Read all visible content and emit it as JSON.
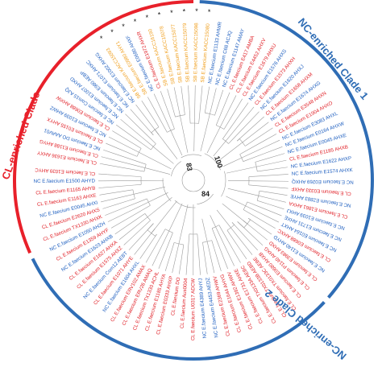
{
  "clades": {
    "cl_enriched": {
      "label": "CL-enriched Clade",
      "color": "#e8202a"
    },
    "nc_clade_1": {
      "label": "NC-enriched Clade 1",
      "color": "#2f6db5"
    },
    "nc_clade_2": {
      "label": "NC-enriched Clade 2",
      "color": "#2f6db5"
    }
  },
  "bootstrap": {
    "node_a": "83",
    "node_b": "100",
    "node_c": "84"
  },
  "star_symbol": "*",
  "group_colors": {
    "CL": "#e01f26",
    "NC": "#2060c0",
    "SB": "#f0a020"
  },
  "tips": [
    {
      "label": "CL E.faecium E1636 AHXY",
      "group": "CL"
    },
    {
      "label": "CL E.faecium E1188 AHYG",
      "group": "CL"
    },
    {
      "label": "NC E.faecium DO AAAV01",
      "group": "NC"
    },
    {
      "label": "CL E.faecium E0155 AHYX",
      "group": "CL"
    },
    {
      "label": "NC E.faecium E1039 AHWZ",
      "group": "NC"
    },
    {
      "label": "CL E.faecium E0688 AHXW",
      "group": "CL"
    },
    {
      "label": "NC E.faecium Com15 AJQ",
      "group": "NC"
    },
    {
      "label": "NC E.faecium E1007 AHXD",
      "group": "NC"
    },
    {
      "label": "NC E.faecium E980 AEBP",
      "group": "NC"
    },
    {
      "label": "NC E.faecium E1071 AHXC",
      "group": "NC"
    },
    {
      "label": "NC E.faecium E1002 AHXG",
      "group": "NC"
    },
    {
      "label": "SB E.faecium KACC15093",
      "group": "SB",
      "star": true
    },
    {
      "label": "SB E.faecium E0980 AHY1",
      "group": "SB",
      "star": true
    },
    {
      "label": "NC E.faecium E0680 AHXF",
      "group": "NC",
      "star": true
    },
    {
      "label": "CL E.faecium E1972 AHXR",
      "group": "CL",
      "star": true
    },
    {
      "label": "SB E.faecium KACC16190",
      "group": "SB",
      "star": true
    },
    {
      "label": "SB E.faecium KACC15078",
      "group": "SB",
      "star": true
    },
    {
      "label": "SB E.faecium KACC15077",
      "group": "SB",
      "star": true
    },
    {
      "label": "SB E.faecium KACC15079",
      "group": "SB",
      "star": true
    },
    {
      "label": "SB E.faecium KACC15098",
      "group": "SB",
      "star": true
    },
    {
      "label": "SB E.faecium KACC15080",
      "group": "SB",
      "star": true
    },
    {
      "label": "NC E.faecium E1133 AHWR",
      "group": "NC"
    },
    {
      "label": "NC E.faecium C68 ACJQ",
      "group": "NC"
    },
    {
      "label": "NC E.faecium E1147 AMAY",
      "group": "NC"
    },
    {
      "label": "CL E.faecium E417 AMBA",
      "group": "CL"
    },
    {
      "label": "CL E.faecium E4452 AHXV",
      "group": "CL"
    },
    {
      "label": "CL E.faecium E1679 AHXU",
      "group": "CL"
    },
    {
      "label": "NC E.faecium E1576 AHXS",
      "group": "NC"
    },
    {
      "label": "CL E.faecium E1573 AHXH",
      "group": "CL"
    },
    {
      "label": "NC E.faecium E1620 AHXJ",
      "group": "NC"
    },
    {
      "label": "CL E.faecium E1658 AHXM",
      "group": "CL"
    },
    {
      "label": "NC E.faecium E1674 AHXG",
      "group": "NC"
    },
    {
      "label": "CL E.faecium E3548 AHXN",
      "group": "CL"
    },
    {
      "label": "CL E.faecium E1904 AHXO",
      "group": "CL"
    },
    {
      "label": "NC E.faecium E3083 AHXL",
      "group": "NC"
    },
    {
      "label": "NC E.faecium E0164 AHXW",
      "group": "NC"
    },
    {
      "label": "NC E.faecium E0045 AHXE",
      "group": "NC"
    },
    {
      "label": "CL E.faecium E1185 AHXB",
      "group": "CL"
    },
    {
      "label": "NC E.faecium E1622 AHXP",
      "group": "NC"
    },
    {
      "label": "NC E.faecium E1574 AHXK",
      "group": "NC"
    },
    {
      "label": "NC E.faecium E0269 AHXQ",
      "group": "NC"
    },
    {
      "label": "CL E.faecium E0333 AHXF",
      "group": "CL"
    },
    {
      "label": "NC E.faecium E2883 AHYE",
      "group": "NC"
    },
    {
      "label": "CL E.faecium E1861 AHXA",
      "group": "CL"
    },
    {
      "label": "NC E.faecium E1039 AHXJ",
      "group": "NC"
    },
    {
      "label": "NC E.faecium E1731 AHXE",
      "group": "NC"
    },
    {
      "label": "NC E.faecium E0164 AHXT",
      "group": "NC"
    },
    {
      "label": "CL E.faecium E0688 AHXC",
      "group": "CL"
    },
    {
      "label": "NC E.faecium E1140 AHYD",
      "group": "NC"
    },
    {
      "label": "CL E.faecium E3983 AHXD",
      "group": "CL"
    },
    {
      "label": "CL E.faecium P1140 AHXG",
      "group": "CL"
    },
    {
      "label": "CL E.faecium E0680 AHXB",
      "group": "CL"
    },
    {
      "label": "CL E.faecium TX0133C AEBE",
      "group": "CL"
    },
    {
      "label": "CL E.faecium TX0133B AEBD",
      "group": "CL"
    },
    {
      "label": "CL E.faecium TX0133A AEBC",
      "group": "CL"
    },
    {
      "label": "CL E.faecium E1731 AHXE",
      "group": "CL"
    },
    {
      "label": "CL E.faecium E1392 AHWV",
      "group": "CL"
    },
    {
      "label": "CL E.faecium E1644 AHYG",
      "group": "CL"
    },
    {
      "label": "CL E.faecium E2369 AHWV",
      "group": "CL"
    },
    {
      "label": "NC E.faecium E4453 AEDZ",
      "group": "NC"
    },
    {
      "label": "NC E.faecium E4389 AHYJ",
      "group": "NC"
    },
    {
      "label": "CL E.faecium U0317 ADCW",
      "group": "CL"
    },
    {
      "label": "CL E.faecium Aus0004",
      "group": "CL"
    },
    {
      "label": "CL E.faecium DO",
      "group": "CL"
    },
    {
      "label": "CL E.faecium E0333 AHXP",
      "group": "CL"
    },
    {
      "label": "CL E.faecium E1185 AHYA",
      "group": "CL"
    },
    {
      "label": "CL E.faecium TX1330 ACHL",
      "group": "CL"
    },
    {
      "label": "CL E.faecium ERV26 AMAQ",
      "group": "CL"
    },
    {
      "label": "CL E.faecium ERV102 AMAX",
      "group": "CL"
    },
    {
      "label": "NC E.faecium E1604 AHXL",
      "group": "NC"
    },
    {
      "label": "CL E.faecium E1071 AHYE",
      "group": "CL"
    },
    {
      "label": "NC E.faecium Com12 AEBT",
      "group": "NC"
    },
    {
      "label": "CL E.faecium E1575 AHXZ",
      "group": "CL"
    },
    {
      "label": "CL E.faecium E1627 AHXA",
      "group": "CL"
    },
    {
      "label": "NC E.faecium E1623 AHXB",
      "group": "NC"
    },
    {
      "label": "CL E.faecium E1359 AHYF",
      "group": "CL"
    },
    {
      "label": "NC E.faecium E1050 AHZH",
      "group": "NC"
    },
    {
      "label": "CL E.faecium TX1330 AHXK",
      "group": "CL"
    },
    {
      "label": "CL E.faecium E2620 AHXS",
      "group": "CL"
    },
    {
      "label": "NC E.faecium E0045 AHXI",
      "group": "NC"
    },
    {
      "label": "CL E.faecium E1163 AHXE",
      "group": "CL"
    },
    {
      "label": "CL E.faecium E1165 AHYB",
      "group": "CL"
    },
    {
      "label": "NC E.faecium E1500 AHYD",
      "group": "NC"
    },
    {
      "label": "CL E.faecium E1039 AHYC",
      "group": "CL"
    }
  ]
}
